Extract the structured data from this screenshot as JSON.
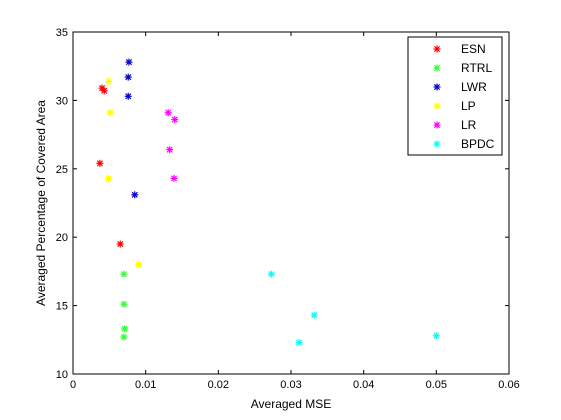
{
  "chart_data": {
    "type": "scatter",
    "xlabel": "Averaged MSE",
    "ylabel": "Averaged Percentage of Covered Area",
    "xlim": [
      0,
      0.06
    ],
    "ylim": [
      10,
      35
    ],
    "xticks": [
      0,
      0.01,
      0.02,
      0.03,
      0.04,
      0.05,
      0.06
    ],
    "xtick_labels": [
      "0",
      "0.01",
      "0.02",
      "0.03",
      "0.04",
      "0.05",
      "0.06"
    ],
    "yticks": [
      10,
      15,
      20,
      25,
      30,
      35
    ],
    "ytick_labels": [
      "10",
      "15",
      "20",
      "25",
      "30",
      "35"
    ],
    "grid": false,
    "legend_position": "top-right",
    "marker": "*",
    "series": [
      {
        "name": "ESN",
        "color": "#ff0000",
        "points": [
          [
            0.004,
            30.9
          ],
          [
            0.0043,
            30.7
          ],
          [
            0.0037,
            25.4
          ],
          [
            0.0065,
            19.5
          ]
        ]
      },
      {
        "name": "RTRL",
        "color": "#33ff33",
        "points": [
          [
            0.007,
            17.3
          ],
          [
            0.007,
            15.1
          ],
          [
            0.0071,
            13.3
          ],
          [
            0.007,
            12.7
          ]
        ]
      },
      {
        "name": "LWR",
        "color": "#0000cc",
        "points": [
          [
            0.0077,
            32.8
          ],
          [
            0.0076,
            31.7
          ],
          [
            0.0076,
            30.3
          ],
          [
            0.0085,
            23.1
          ]
        ]
      },
      {
        "name": "LP",
        "color": "#ffff00",
        "points": [
          [
            0.0049,
            31.4
          ],
          [
            0.0051,
            29.1
          ],
          [
            0.0049,
            24.3
          ],
          [
            0.009,
            18.0
          ]
        ]
      },
      {
        "name": "LR",
        "color": "#ff00ff",
        "points": [
          [
            0.0131,
            29.1
          ],
          [
            0.014,
            28.6
          ],
          [
            0.0133,
            26.4
          ],
          [
            0.0139,
            24.3
          ]
        ]
      },
      {
        "name": "BPDC",
        "color": "#00ffff",
        "points": [
          [
            0.0273,
            17.3
          ],
          [
            0.0332,
            14.3
          ],
          [
            0.0311,
            12.3
          ],
          [
            0.05,
            12.8
          ]
        ]
      }
    ]
  }
}
